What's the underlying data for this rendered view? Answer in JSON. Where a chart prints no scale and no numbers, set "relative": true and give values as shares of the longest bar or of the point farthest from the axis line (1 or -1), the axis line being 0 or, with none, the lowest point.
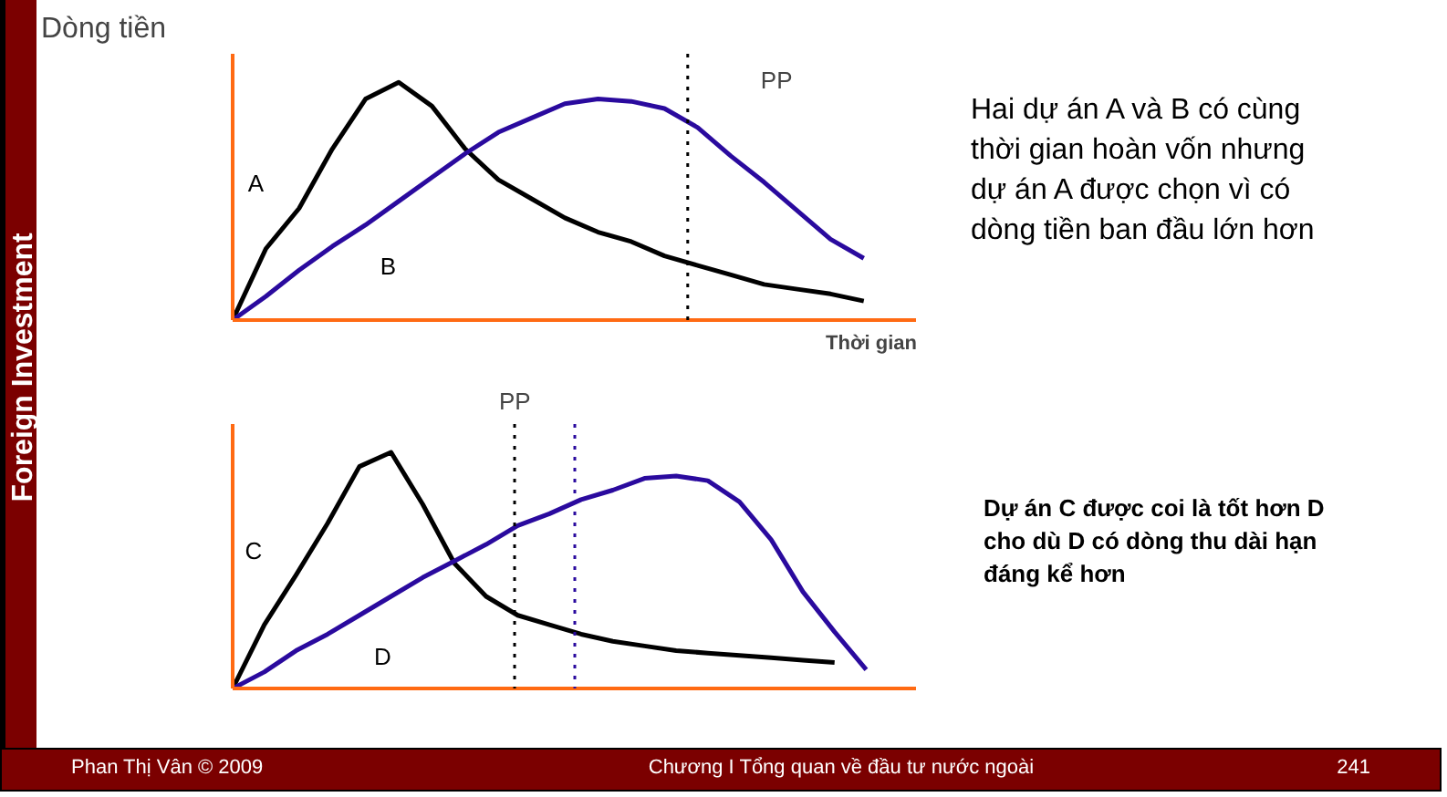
{
  "chart_data": [
    {
      "type": "line",
      "relative": true,
      "ylabel": "Dòng tiền",
      "xlabel": "Thời gian",
      "categories": [
        null,
        null,
        null,
        null,
        null,
        null,
        null,
        null,
        null,
        null,
        null,
        null,
        null,
        null,
        null,
        null,
        null,
        null,
        null,
        null
      ],
      "series": [
        {
          "name": "A",
          "color": "#000000",
          "values": [
            0,
            0.3,
            0.47,
            0.72,
            0.93,
            1,
            0.9,
            0.72,
            0.59,
            0.51,
            0.43,
            0.37,
            0.33,
            0.27,
            0.23,
            0.19,
            0.15,
            0.13,
            0.11,
            0.08
          ]
        },
        {
          "name": "B",
          "color": "#2a0a9e",
          "values": [
            0,
            0.1,
            0.21,
            0.31,
            0.4,
            0.5,
            0.6,
            0.7,
            0.79,
            0.85,
            0.91,
            0.93,
            0.92,
            0.89,
            0.81,
            0.69,
            0.58,
            0.46,
            0.34,
            0.26
          ]
        }
      ],
      "annotations": [
        "PP",
        "Hai dự án A và B có cùng thời gian hoàn vốn nhưng dự án A được chọn vì có dòng tiền ban đầu lớn hơn"
      ]
    },
    {
      "type": "line",
      "relative": true,
      "categories": [
        null,
        null,
        null,
        null,
        null,
        null,
        null,
        null,
        null,
        null,
        null,
        null,
        null,
        null,
        null,
        null,
        null,
        null,
        null,
        null,
        null
      ],
      "series": [
        {
          "name": "C",
          "color": "#000000",
          "values": [
            0,
            0.27,
            0.48,
            0.7,
            0.94,
            1,
            0.78,
            0.53,
            0.39,
            0.31,
            0.27,
            0.23,
            0.2,
            0.18,
            0.16,
            0.15,
            0.14,
            0.13,
            0.12,
            0.11,
            null
          ]
        },
        {
          "name": "D",
          "color": "#2a0a9e",
          "values": [
            0,
            0.07,
            0.16,
            0.23,
            0.31,
            0.39,
            0.47,
            0.54,
            0.61,
            0.69,
            0.74,
            0.8,
            0.84,
            0.89,
            0.9,
            0.88,
            0.79,
            0.63,
            0.41,
            0.24,
            0.08
          ]
        }
      ],
      "annotations": [
        "PP",
        "Dự án C được coi là tốt hơn D cho dù D có dòng thu dài hạn đáng kể hơn"
      ]
    },
    {
      "type": "other",
      "annotations": [
        "Foreign Investment",
        "Phan Thị Vân © 2009",
        "Chương I Tổng quan về đầu tư nước ngoài",
        "241"
      ]
    }
  ]
}
